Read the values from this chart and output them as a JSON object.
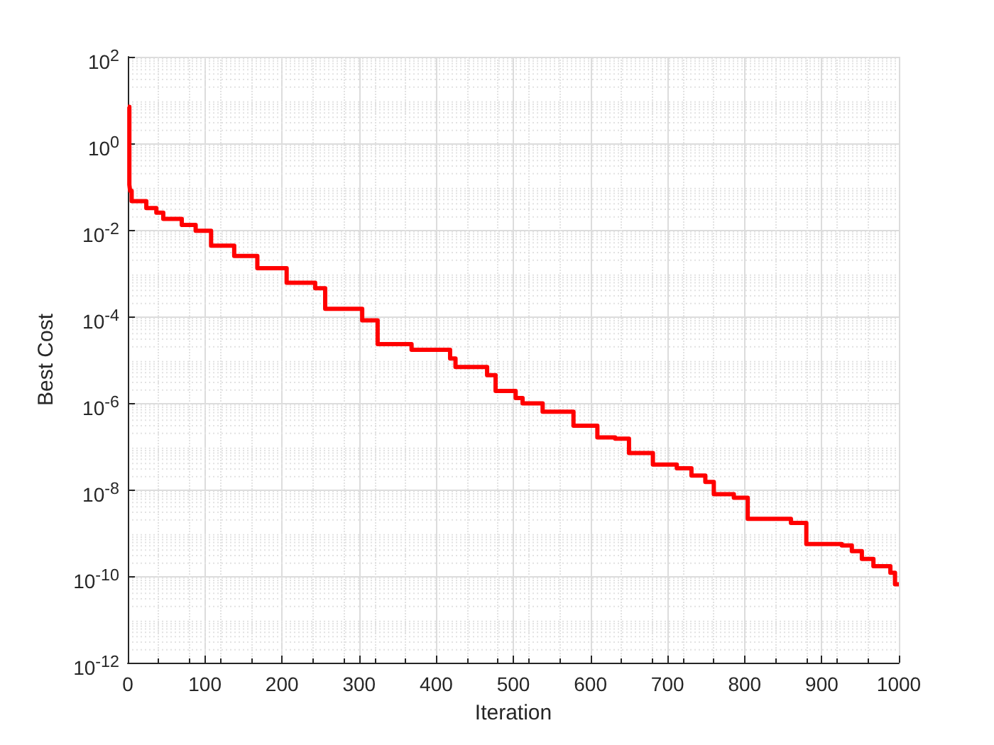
{
  "chart_data": {
    "type": "step",
    "xlabel": "Iteration",
    "ylabel": "Best Cost",
    "log": "y",
    "grid": true,
    "line_style": "solid",
    "marker": "none",
    "xlim": [
      0,
      1000
    ],
    "xticks": [
      0,
      100,
      200,
      300,
      400,
      500,
      600,
      700,
      800,
      900,
      1000
    ],
    "ylim": [
      1e-12,
      100
    ],
    "yticks": [
      {
        "value": 1e-12,
        "label": "10$^{-12}$"
      },
      {
        "value": 1e-10,
        "label": "10$^{-10}$"
      },
      {
        "value": 1e-08,
        "label": "10$^{-8}$"
      },
      {
        "value": 1e-06,
        "label": "10$^{-6}$"
      },
      {
        "value": 0.0001,
        "label": "10$^{-4}$"
      },
      {
        "value": 0.01,
        "label": "10$^{-2}$"
      },
      {
        "value": 1,
        "label": "10$^{0}$"
      },
      {
        "value": 100,
        "label": "10$^{2}$"
      }
    ],
    "series": [
      {
        "color": "#ff0000",
        "x": [
          0,
          2,
          3,
          5,
          24,
          37,
          46,
          70,
          88,
          108,
          138,
          168,
          206,
          243,
          256,
          304,
          324,
          368,
          418,
          425,
          466,
          477,
          503,
          512,
          538,
          578,
          609,
          632,
          650,
          681,
          712,
          731,
          749,
          760,
          786,
          804,
          860,
          880,
          926,
          939,
          952,
          967,
          989,
          995,
          1000
        ],
        "values": [
          7,
          0.11,
          0.08,
          0.046,
          0.032,
          0.025,
          0.018,
          0.013,
          0.0095,
          0.0043,
          0.0025,
          0.0013,
          0.0006,
          0.00045,
          0.00015,
          8.1e-05,
          2.3e-05,
          1.7e-05,
          1.07e-05,
          6.8e-06,
          4.4e-06,
          1.9e-06,
          1.3e-06,
          9.8e-07,
          6.3e-07,
          3e-07,
          1.6e-07,
          1.5e-07,
          7e-08,
          3.8e-08,
          3.1e-08,
          2.1e-08,
          1.5e-08,
          7.8e-09,
          6.5e-09,
          2.1e-09,
          1.7e-09,
          5.5e-10,
          5.1e-10,
          3.8e-10,
          2.5e-10,
          1.7e-10,
          1.2e-10,
          6.5e-11,
          6.5e-11
        ]
      }
    ]
  }
}
